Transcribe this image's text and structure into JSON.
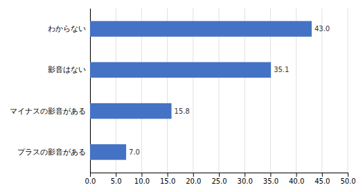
{
  "chart_data": {
    "type": "bar",
    "orientation": "horizontal",
    "categories": [
      "プラスの影音がある",
      "マイナスの影音がある",
      "影音はない",
      "わからない"
    ],
    "values": [
      7.0,
      15.8,
      35.1,
      43.0
    ],
    "value_labels": [
      "7.0",
      "15.8",
      "35.1",
      "43.0"
    ],
    "data_labels": true,
    "color": "#4472C4",
    "xlim": [
      0,
      50
    ],
    "xticks": [
      {
        "value": 0.0,
        "label": "0.0"
      },
      {
        "value": 5.0,
        "label": "5.0"
      },
      {
        "value": 10.0,
        "label": "10.0"
      },
      {
        "value": 15.0,
        "label": "15.0"
      },
      {
        "value": 20.0,
        "label": "20.0"
      },
      {
        "value": 25.0,
        "label": "25.0"
      },
      {
        "value": 30.0,
        "label": "30.0"
      },
      {
        "value": 35.0,
        "label": "35.0"
      },
      {
        "value": 40.0,
        "label": "40.0"
      },
      {
        "value": 45.0,
        "label": "45.0"
      },
      {
        "value": 50.0,
        "label": "50.0"
      }
    ],
    "grid": true
  }
}
